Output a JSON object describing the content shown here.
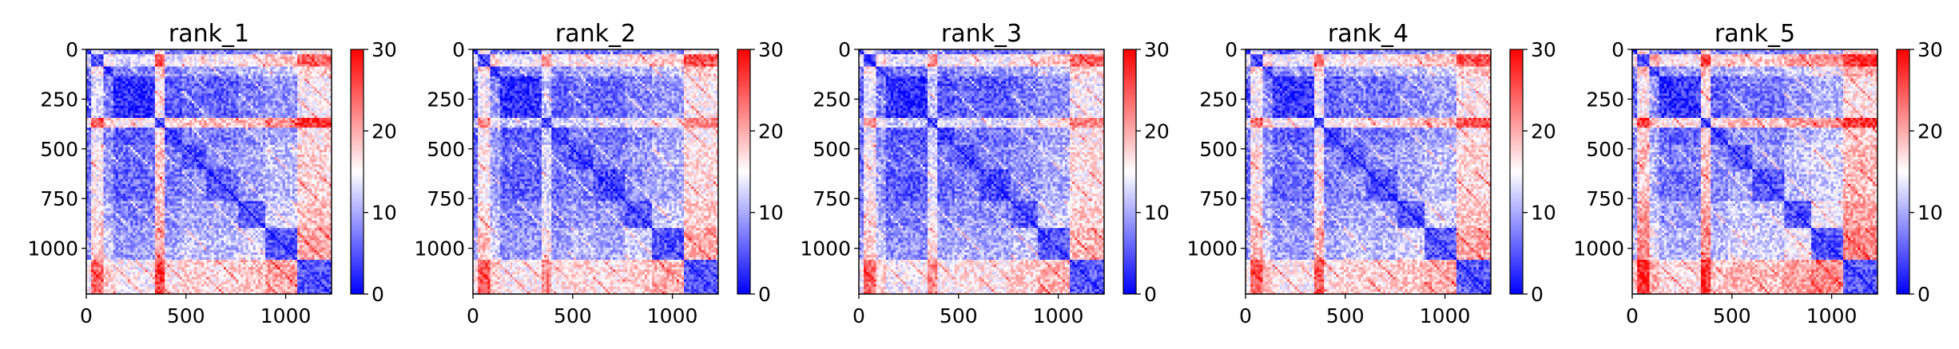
{
  "chart_data": [
    {
      "type": "heatmap",
      "title": "rank_1",
      "x_ticks": [
        0,
        500,
        1000
      ],
      "y_ticks": [
        0,
        250,
        500,
        750,
        1000
      ],
      "xlim": [
        0,
        1230
      ],
      "ylim": [
        1230,
        0
      ],
      "colorbar": {
        "cmap": "bwr",
        "range": [
          0,
          30
        ],
        "ticks": [
          0,
          10,
          20,
          30
        ]
      },
      "structure": {
        "size": 1230,
        "block_edges": [
          0,
          20,
          90,
          130,
          350,
          390,
          480,
          600,
          760,
          900,
          1060,
          1230
        ],
        "block_values": [
          5,
          22,
          10,
          4,
          28,
          6,
          9,
          8,
          11,
          14,
          26
        ]
      }
    },
    {
      "type": "heatmap",
      "title": "rank_2",
      "x_ticks": [
        0,
        500,
        1000
      ],
      "y_ticks": [
        0,
        250,
        500,
        750,
        1000
      ],
      "xlim": [
        0,
        1230
      ],
      "ylim": [
        1230,
        0
      ],
      "colorbar": {
        "cmap": "bwr",
        "range": [
          0,
          30
        ],
        "ticks": [
          0,
          10,
          20,
          30
        ]
      },
      "structure": {
        "size": 1230,
        "block_edges": [
          0,
          20,
          90,
          130,
          350,
          390,
          480,
          600,
          760,
          900,
          1060,
          1230
        ],
        "block_values": [
          5,
          24,
          11,
          5,
          18,
          6,
          8,
          7,
          10,
          13,
          26
        ]
      }
    },
    {
      "type": "heatmap",
      "title": "rank_3",
      "x_ticks": [
        0,
        500,
        1000
      ],
      "y_ticks": [
        0,
        250,
        500,
        750,
        1000
      ],
      "xlim": [
        0,
        1230
      ],
      "ylim": [
        1230,
        0
      ],
      "colorbar": {
        "cmap": "bwr",
        "range": [
          0,
          30
        ],
        "ticks": [
          0,
          10,
          20,
          30
        ]
      },
      "structure": {
        "size": 1230,
        "block_edges": [
          0,
          20,
          90,
          130,
          350,
          390,
          480,
          600,
          760,
          900,
          1060,
          1230
        ],
        "block_values": [
          5,
          23,
          10,
          4,
          19,
          6,
          8,
          7,
          10,
          13,
          25
        ]
      }
    },
    {
      "type": "heatmap",
      "title": "rank_4",
      "x_ticks": [
        0,
        500,
        1000
      ],
      "y_ticks": [
        0,
        250,
        500,
        750,
        1000
      ],
      "xlim": [
        0,
        1230
      ],
      "ylim": [
        1230,
        0
      ],
      "colorbar": {
        "cmap": "bwr",
        "range": [
          0,
          30
        ],
        "ticks": [
          0,
          10,
          20,
          30
        ]
      },
      "structure": {
        "size": 1230,
        "block_edges": [
          0,
          20,
          90,
          130,
          350,
          390,
          480,
          600,
          760,
          900,
          1060,
          1230
        ],
        "block_values": [
          5,
          24,
          11,
          5,
          24,
          6,
          9,
          8,
          11,
          14,
          26
        ]
      }
    },
    {
      "type": "heatmap",
      "title": "rank_5",
      "x_ticks": [
        0,
        500,
        1000
      ],
      "y_ticks": [
        0,
        250,
        500,
        750,
        1000
      ],
      "xlim": [
        0,
        1230
      ],
      "ylim": [
        1230,
        0
      ],
      "colorbar": {
        "cmap": "bwr",
        "range": [
          0,
          30
        ],
        "ticks": [
          0,
          10,
          20,
          30
        ]
      },
      "structure": {
        "size": 1230,
        "block_edges": [
          0,
          20,
          90,
          130,
          350,
          390,
          480,
          600,
          760,
          900,
          1060,
          1230
        ],
        "block_values": [
          6,
          27,
          12,
          5,
          27,
          7,
          10,
          9,
          13,
          16,
          28
        ]
      }
    }
  ]
}
